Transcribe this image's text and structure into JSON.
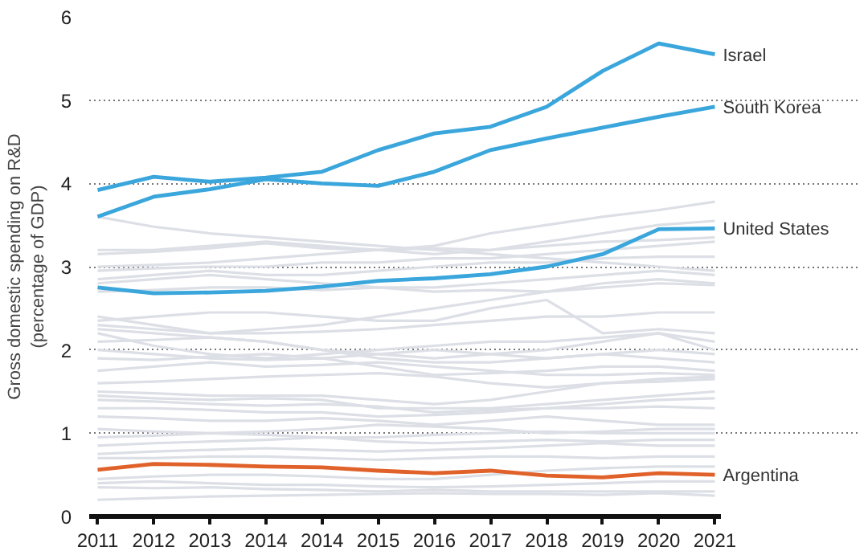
{
  "chart_data": {
    "type": "line",
    "ylabel": "Gross domestic spending on R&D\n(percentage of GDP)",
    "categories": [
      "2011",
      "2012",
      "2013",
      "2014",
      "2014",
      "2015",
      "2016",
      "2017",
      "2018",
      "2019",
      "2020",
      "2021"
    ],
    "ylim": [
      0,
      6
    ],
    "yticks": [
      0,
      1,
      2,
      3,
      4,
      5,
      6
    ],
    "grid": "y",
    "line_style": "solid",
    "series": [
      {
        "color": "#dcdfe5",
        "values": [
          3.6,
          3.48,
          3.4,
          3.35,
          3.3,
          3.25,
          3.2,
          3.15,
          3.1,
          3.05,
          3.0,
          2.95
        ]
      },
      {
        "color": "#dcdfe5",
        "values": [
          3.15,
          3.18,
          3.22,
          3.28,
          3.22,
          3.2,
          3.25,
          3.4,
          3.5,
          3.6,
          3.68,
          3.78
        ]
      },
      {
        "color": "#dcdfe5",
        "values": [
          3.2,
          3.2,
          3.25,
          3.3,
          3.25,
          3.2,
          3.15,
          3.2,
          3.3,
          3.4,
          3.5,
          3.55
        ]
      },
      {
        "color": "#dcdfe5",
        "values": [
          3.0,
          3.02,
          3.05,
          3.1,
          3.15,
          3.2,
          3.22,
          3.2,
          3.25,
          3.3,
          3.32,
          3.35
        ]
      },
      {
        "color": "#dcdfe5",
        "values": [
          2.95,
          2.98,
          3.0,
          3.0,
          3.05,
          3.05,
          3.1,
          3.1,
          3.15,
          3.2,
          3.25,
          3.3
        ]
      },
      {
        "color": "#dcdfe5",
        "values": [
          2.85,
          2.9,
          2.95,
          2.9,
          2.9,
          2.95,
          3.0,
          3.05,
          3.05,
          3.1,
          3.12,
          3.12
        ]
      },
      {
        "color": "#dcdfe5",
        "values": [
          2.8,
          2.85,
          2.9,
          2.85,
          2.8,
          2.75,
          2.75,
          2.8,
          2.85,
          2.9,
          2.95,
          2.9
        ]
      },
      {
        "color": "#dcdfe5",
        "values": [
          2.7,
          2.72,
          2.75,
          2.75,
          2.72,
          2.75,
          2.7,
          2.72,
          2.7,
          2.8,
          2.85,
          2.8
        ]
      },
      {
        "color": "#dcdfe5",
        "values": [
          2.4,
          2.3,
          2.2,
          2.25,
          2.3,
          2.4,
          2.5,
          2.6,
          2.7,
          2.75,
          2.8,
          2.78
        ]
      },
      {
        "color": "#dcdfe5",
        "values": [
          2.35,
          2.4,
          2.45,
          2.45,
          2.4,
          2.35,
          2.35,
          2.5,
          2.6,
          2.2,
          2.25,
          2.2
        ]
      },
      {
        "color": "#dcdfe5",
        "values": [
          2.3,
          2.25,
          2.2,
          2.2,
          2.22,
          2.25,
          2.3,
          2.35,
          2.4,
          2.4,
          2.45,
          2.45
        ]
      },
      {
        "color": "#dcdfe5",
        "values": [
          2.25,
          2.2,
          2.15,
          2.1,
          2.0,
          1.95,
          1.9,
          1.95,
          2.0,
          2.1,
          2.2,
          2.0
        ]
      },
      {
        "color": "#dcdfe5",
        "values": [
          2.2,
          2.05,
          1.95,
          1.9,
          1.95,
          2.0,
          2.05,
          2.1,
          2.1,
          2.15,
          2.2,
          2.1
        ]
      },
      {
        "color": "#dcdfe5",
        "values": [
          2.1,
          2.12,
          2.15,
          2.1,
          2.0,
          1.9,
          1.85,
          1.85,
          1.9,
          1.95,
          2.0,
          1.95
        ]
      },
      {
        "color": "#dcdfe5",
        "values": [
          2.0,
          1.95,
          1.9,
          1.88,
          1.9,
          1.95,
          2.0,
          1.95,
          1.9,
          1.95,
          1.9,
          1.85
        ]
      },
      {
        "color": "#dcdfe5",
        "values": [
          1.9,
          1.88,
          1.92,
          1.95,
          1.9,
          1.8,
          1.7,
          1.72,
          1.75,
          1.8,
          1.8,
          1.75
        ]
      },
      {
        "color": "#dcdfe5",
        "values": [
          1.75,
          1.8,
          1.85,
          1.8,
          1.82,
          1.85,
          1.8,
          1.75,
          1.7,
          1.7,
          1.72,
          1.7
        ]
      },
      {
        "color": "#dcdfe5",
        "values": [
          1.6,
          1.62,
          1.65,
          1.68,
          1.7,
          1.72,
          1.68,
          1.6,
          1.55,
          1.6,
          1.62,
          1.65
        ]
      },
      {
        "color": "#dcdfe5",
        "values": [
          1.5,
          1.48,
          1.45,
          1.45,
          1.45,
          1.4,
          1.35,
          1.4,
          1.5,
          1.6,
          1.65,
          1.68
        ]
      },
      {
        "color": "#dcdfe5",
        "values": [
          1.45,
          1.42,
          1.4,
          1.42,
          1.4,
          1.3,
          1.3,
          1.3,
          1.35,
          1.4,
          1.45,
          1.5
        ]
      },
      {
        "color": "#dcdfe5",
        "values": [
          1.4,
          1.38,
          1.35,
          1.33,
          1.35,
          1.32,
          1.25,
          1.28,
          1.3,
          1.35,
          1.4,
          1.42
        ]
      },
      {
        "color": "#dcdfe5",
        "values": [
          1.3,
          1.3,
          1.28,
          1.25,
          1.25,
          1.2,
          1.22,
          1.25,
          1.3,
          1.3,
          1.32,
          1.3
        ]
      },
      {
        "color": "#dcdfe5",
        "values": [
          1.2,
          1.18,
          1.15,
          1.15,
          1.18,
          1.15,
          1.1,
          1.15,
          1.2,
          1.15,
          1.1,
          1.1
        ]
      },
      {
        "color": "#dcdfe5",
        "values": [
          1.05,
          1.02,
          1.0,
          1.02,
          1.05,
          1.1,
          1.08,
          1.05,
          1.0,
          1.02,
          1.05,
          1.05
        ]
      },
      {
        "color": "#dcdfe5",
        "values": [
          0.95,
          0.97,
          1.0,
          0.98,
          0.95,
          0.95,
          0.98,
          1.0,
          1.02,
          1.0,
          1.0,
          1.0
        ]
      },
      {
        "color": "#dcdfe5",
        "values": [
          0.85,
          0.88,
          0.9,
          0.92,
          0.95,
          0.9,
          0.88,
          0.9,
          0.92,
          0.9,
          0.92,
          0.92
        ]
      },
      {
        "color": "#dcdfe5",
        "values": [
          0.75,
          0.78,
          0.8,
          0.82,
          0.8,
          0.78,
          0.8,
          0.82,
          0.85,
          0.88,
          0.85,
          0.85
        ]
      },
      {
        "color": "#dcdfe5",
        "values": [
          0.7,
          0.7,
          0.72,
          0.72,
          0.7,
          0.68,
          0.7,
          0.72,
          0.72,
          0.7,
          0.72,
          0.72
        ]
      },
      {
        "color": "#dcdfe5",
        "values": [
          0.45,
          0.48,
          0.5,
          0.5,
          0.48,
          0.45,
          0.45,
          0.5,
          0.55,
          0.58,
          0.6,
          0.6
        ]
      },
      {
        "color": "#dcdfe5",
        "values": [
          0.4,
          0.42,
          0.4,
          0.38,
          0.38,
          0.36,
          0.35,
          0.36,
          0.38,
          0.4,
          0.42,
          0.42
        ]
      },
      {
        "color": "#dcdfe5",
        "values": [
          0.35,
          0.34,
          0.35,
          0.33,
          0.32,
          0.3,
          0.32,
          0.3,
          0.3,
          0.3,
          0.3,
          0.3
        ]
      },
      {
        "color": "#dcdfe5",
        "values": [
          0.2,
          0.22,
          0.24,
          0.25,
          0.26,
          0.27,
          0.28,
          0.27,
          0.27,
          0.26,
          0.28,
          0.25
        ]
      },
      {
        "name": "Israel",
        "color": "#3aa6dc",
        "values": [
          3.92,
          4.08,
          4.02,
          4.07,
          4.14,
          4.4,
          4.6,
          4.68,
          4.92,
          5.35,
          5.68,
          5.55
        ]
      },
      {
        "name": "South Korea",
        "color": "#3aa6dc",
        "values": [
          3.6,
          3.84,
          3.93,
          4.05,
          4.0,
          3.97,
          4.14,
          4.4,
          4.54,
          4.67,
          4.8,
          4.92
        ]
      },
      {
        "name": "United States",
        "color": "#3aa6dc",
        "values": [
          2.75,
          2.68,
          2.69,
          2.71,
          2.76,
          2.83,
          2.86,
          2.91,
          3.0,
          3.15,
          3.45,
          3.46
        ]
      },
      {
        "name": "Argentina",
        "color": "#e0622a",
        "values": [
          0.56,
          0.63,
          0.62,
          0.6,
          0.59,
          0.55,
          0.52,
          0.55,
          0.49,
          0.47,
          0.52,
          0.5
        ]
      }
    ]
  }
}
